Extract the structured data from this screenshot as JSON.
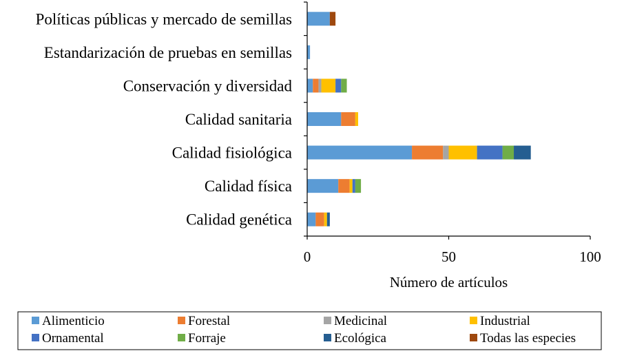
{
  "chart_data": {
    "type": "bar",
    "orientation": "horizontal",
    "stacked": true,
    "title": "",
    "xlabel": "Número de artículos",
    "ylabel": "",
    "xlim": [
      0,
      100
    ],
    "xticks": [
      0,
      50,
      100
    ],
    "grid": false,
    "legend_position": "bottom",
    "categories": [
      "Políticas públicas y mercado de semillas",
      "Estandarización de pruebas en semillas",
      "Conservación y diversidad",
      "Calidad sanitaria",
      "Calidad fisiológica",
      "Calidad física",
      "Calidad genética"
    ],
    "series": [
      {
        "name": "Alimenticio",
        "color": "#5B9BD5",
        "values": [
          8,
          1,
          2,
          12,
          37,
          11,
          3
        ]
      },
      {
        "name": "Forestal",
        "color": "#ED7D31",
        "values": [
          0,
          0,
          2,
          5,
          11,
          4,
          3
        ]
      },
      {
        "name": "Medicinal",
        "color": "#A5A5A5",
        "values": [
          0,
          0,
          1,
          0,
          2,
          0,
          0
        ]
      },
      {
        "name": "Industrial",
        "color": "#FFC000",
        "values": [
          0,
          0,
          5,
          1,
          10,
          1,
          1
        ]
      },
      {
        "name": "Ornamental",
        "color": "#4472C4",
        "values": [
          0,
          0,
          2,
          0,
          9,
          1,
          0
        ]
      },
      {
        "name": "Forraje",
        "color": "#70AD47",
        "values": [
          0,
          0,
          2,
          0,
          4,
          2,
          0
        ]
      },
      {
        "name": "Ecológica",
        "color": "#255E91",
        "values": [
          0,
          0,
          0,
          0,
          6,
          0,
          1
        ]
      },
      {
        "name": "Todas las especies",
        "color": "#9E480E",
        "values": [
          2,
          0,
          0,
          0,
          0,
          0,
          0
        ]
      }
    ]
  }
}
